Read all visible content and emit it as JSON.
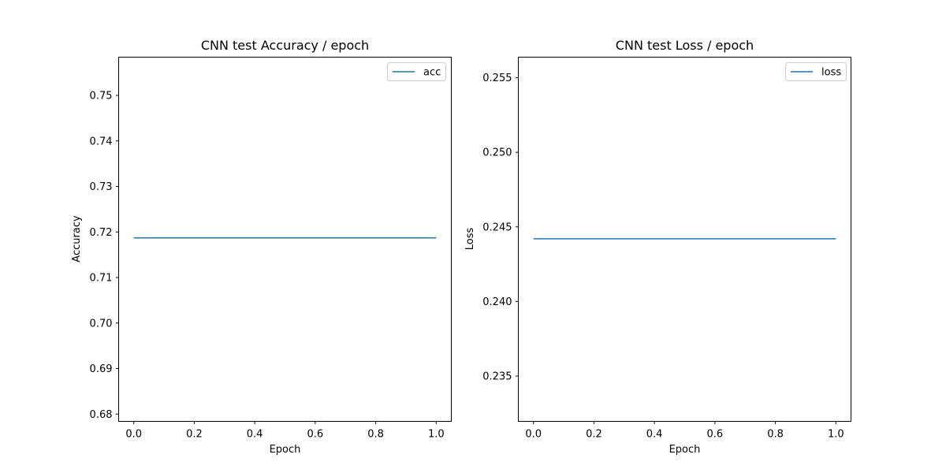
{
  "chart_data": [
    {
      "type": "line",
      "title": "CNN test Accuracy / epoch",
      "xlabel": "Epoch",
      "ylabel": "Accuracy",
      "xlim": [
        -0.05,
        1.05
      ],
      "ylim": [
        0.6784,
        0.7584
      ],
      "xticks": [
        0.0,
        0.2,
        0.4,
        0.6,
        0.8,
        1.0
      ],
      "xtick_labels": [
        "0.0",
        "0.2",
        "0.4",
        "0.6",
        "0.8",
        "1.0"
      ],
      "yticks": [
        0.68,
        0.69,
        0.7,
        0.71,
        0.72,
        0.73,
        0.74,
        0.75
      ],
      "ytick_labels": [
        "0.68",
        "0.69",
        "0.70",
        "0.71",
        "0.72",
        "0.73",
        "0.74",
        "0.75"
      ],
      "legend_position": "top-right",
      "grid": false,
      "series": [
        {
          "name": "acc",
          "color": "#1f77b4",
          "x": [
            0,
            1
          ],
          "y": [
            0.7187,
            0.7187
          ]
        }
      ]
    },
    {
      "type": "line",
      "title": "CNN test Loss / epoch",
      "xlabel": "Epoch",
      "ylabel": "Loss",
      "xlim": [
        -0.05,
        1.05
      ],
      "ylim": [
        0.23196,
        0.25638
      ],
      "xticks": [
        0.0,
        0.2,
        0.4,
        0.6,
        0.8,
        1.0
      ],
      "xtick_labels": [
        "0.0",
        "0.2",
        "0.4",
        "0.6",
        "0.8",
        "1.0"
      ],
      "yticks": [
        0.235,
        0.24,
        0.245,
        0.25,
        0.255
      ],
      "ytick_labels": [
        "0.235",
        "0.240",
        "0.245",
        "0.250",
        "0.255"
      ],
      "legend_position": "top-right",
      "grid": false,
      "series": [
        {
          "name": "loss",
          "color": "#1f77b4",
          "x": [
            0,
            1
          ],
          "y": [
            0.2442,
            0.2442
          ]
        }
      ]
    }
  ]
}
